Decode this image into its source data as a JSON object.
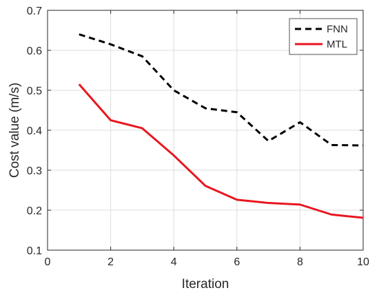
{
  "chart_data": {
    "type": "line",
    "xlabel": "Iteration",
    "ylabel": "Cost value (m/s)",
    "xlim": [
      0,
      10
    ],
    "ylim": [
      0.1,
      0.7
    ],
    "xticks": [
      0,
      2,
      4,
      6,
      8,
      10
    ],
    "yticks": [
      0.1,
      0.2,
      0.3,
      0.4,
      0.5,
      0.6,
      0.7
    ],
    "xtick_labels": [
      "0",
      "2",
      "4",
      "6",
      "8",
      "10"
    ],
    "ytick_labels": [
      "0.1",
      "0.2",
      "0.3",
      "0.4",
      "0.5",
      "0.6",
      "0.7"
    ],
    "grid": true,
    "legend_position": "top-right",
    "x": [
      1,
      2,
      3,
      4,
      5,
      6,
      7,
      8,
      9,
      10
    ],
    "series": [
      {
        "name": "FNN",
        "color": "#000000",
        "line_style": "dashed",
        "values": [
          0.64,
          0.615,
          0.585,
          0.5,
          0.455,
          0.445,
          0.373,
          0.42,
          0.363,
          0.362
        ]
      },
      {
        "name": "MTL",
        "color": "#e8161f",
        "line_style": "solid",
        "values": [
          0.515,
          0.425,
          0.405,
          0.337,
          0.261,
          0.226,
          0.218,
          0.214,
          0.189,
          0.181
        ]
      }
    ]
  }
}
